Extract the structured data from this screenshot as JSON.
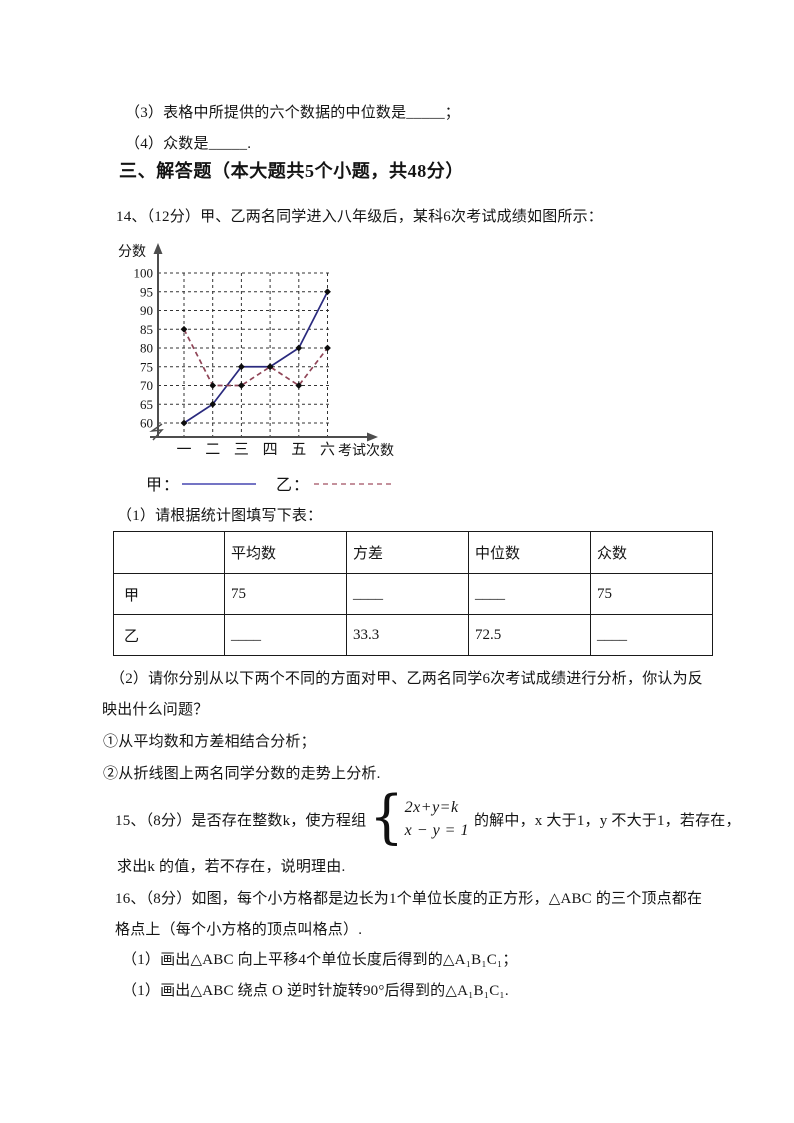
{
  "page": {
    "item3": "（3）表格中所提供的六个数据的中位数是_____；",
    "item4": "（4）众数是_____.",
    "section_header": "三、解答题（本大题共5个小题，共48分）",
    "q14": {
      "stem": "14、（12分）甲、乙两名同学进入八年级后，某科6次考试成绩如图所示：",
      "legend": {
        "jia_label": "甲：",
        "yi_label": "乙："
      },
      "part1": "（1）请根据统计图填写下表：",
      "table": {
        "headers": [
          "",
          "平均数",
          "方差",
          "中位数",
          "众数"
        ],
        "rows": [
          {
            "label": "甲",
            "cells": [
              "75",
              "____",
              "____",
              "75"
            ]
          },
          {
            "label": "乙",
            "cells": [
              "____",
              "33.3",
              "72.5",
              "____"
            ]
          }
        ]
      },
      "part2_line1": "（2）请你分别从以下两个不同的方面对甲、乙两名同学6次考试成绩进行分析，你认为反",
      "part2_line2": "映出什么问题？",
      "analysis1": "①从平均数和方差相结合分析；",
      "analysis2": "②从折线图上两名同学分数的走势上分析."
    },
    "q15": {
      "pre": "15、（8分）是否存在整数k，使方程组",
      "brace": "{",
      "eq1": "2x+y=k",
      "eq2": "x − y = 1",
      "post": "的解中，x 大于1，y 不大于1，若存在，",
      "line2": "求出k 的值，若不存在，说明理由."
    },
    "q16": {
      "line1": "16、（8分）如图，每个小方格都是边长为1个单位长度的正方形，△ABC 的三个顶点都在",
      "line2": "格点上（每个小方格的顶点叫格点）.",
      "sub1": "（1）画出△ABC 向上平移4个单位长度后得到的△A₁B₁C₁；",
      "sub2": "（1）画出△ABC 绕点 O 逆时针旋转90°后得到的△A₁B₁C₁."
    }
  },
  "chart_data": {
    "type": "line",
    "title": "",
    "xlabel": "考试次数",
    "ylabel": "分数",
    "categories": [
      "一",
      "二",
      "三",
      "四",
      "五",
      "六"
    ],
    "yticks": [
      100,
      95,
      90,
      85,
      80,
      75,
      70,
      65,
      60
    ],
    "ylim": [
      60,
      100
    ],
    "grid": "dashed-both",
    "axis_break": true,
    "legend_position": "below",
    "series": [
      {
        "name": "甲",
        "style": "solid",
        "color": "#2a2a7e",
        "legend_color": "#7474c4",
        "values": [
          60,
          65,
          75,
          75,
          80,
          95
        ]
      },
      {
        "name": "乙",
        "style": "dashed",
        "color": "#8f4456",
        "legend_color": "#c4919c",
        "values": [
          85,
          70,
          70,
          75,
          70,
          80
        ]
      }
    ],
    "marker": "black-diamond",
    "axis_color": "#4d4d4d"
  }
}
